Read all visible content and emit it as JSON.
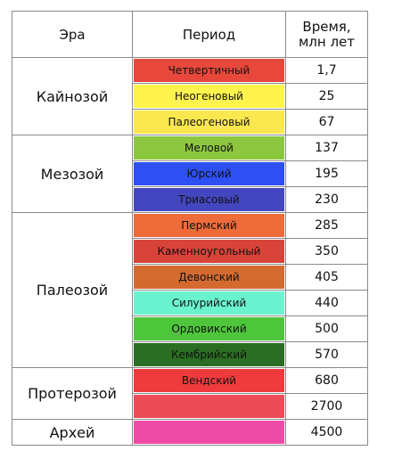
{
  "table": {
    "header": [
      "Эра",
      "Период",
      "Время, млн лет"
    ],
    "eras": [
      {
        "name": "Кайнозой",
        "periods": [
          {
            "name": "Четвертичный",
            "color": "#e8473b",
            "time": "1,7"
          },
          {
            "name": "Неогеновый",
            "color": "#fff34d",
            "time": "25"
          },
          {
            "name": "Палеогеновый",
            "color": "#fbe84f",
            "time": "67"
          }
        ]
      },
      {
        "name": "Мезозой",
        "periods": [
          {
            "name": "Меловой",
            "color": "#8dc63f",
            "time": "137"
          },
          {
            "name": "Юрский",
            "color": "#2e4ff3",
            "time": "195"
          },
          {
            "name": "Триасовый",
            "color": "#4446c0",
            "time": "230"
          }
        ]
      },
      {
        "name": "Палеозой",
        "periods": [
          {
            "name": "Пермский",
            "color": "#ef6b3a",
            "time": "285"
          },
          {
            "name": "Каменноугольный",
            "color": "#d8443a",
            "time": "350"
          },
          {
            "name": "Девонский",
            "color": "#d46a30",
            "time": "405"
          },
          {
            "name": "Силурийский",
            "color": "#6af3cf",
            "time": "440"
          },
          {
            "name": "Ордовикский",
            "color": "#4ec63b",
            "time": "500"
          },
          {
            "name": "Кембрийский",
            "color": "#2b6e23",
            "time": "570"
          }
        ]
      },
      {
        "name": "Протерозой",
        "periods": [
          {
            "name": "Вендский",
            "color": "#ef3b3d",
            "time": "680"
          },
          {
            "color": "#ee4b58",
            "time": "2700"
          }
        ]
      },
      {
        "name": "Архей",
        "periods": [
          {
            "color": "#ee4ba7",
            "time": "4500"
          }
        ]
      }
    ]
  }
}
